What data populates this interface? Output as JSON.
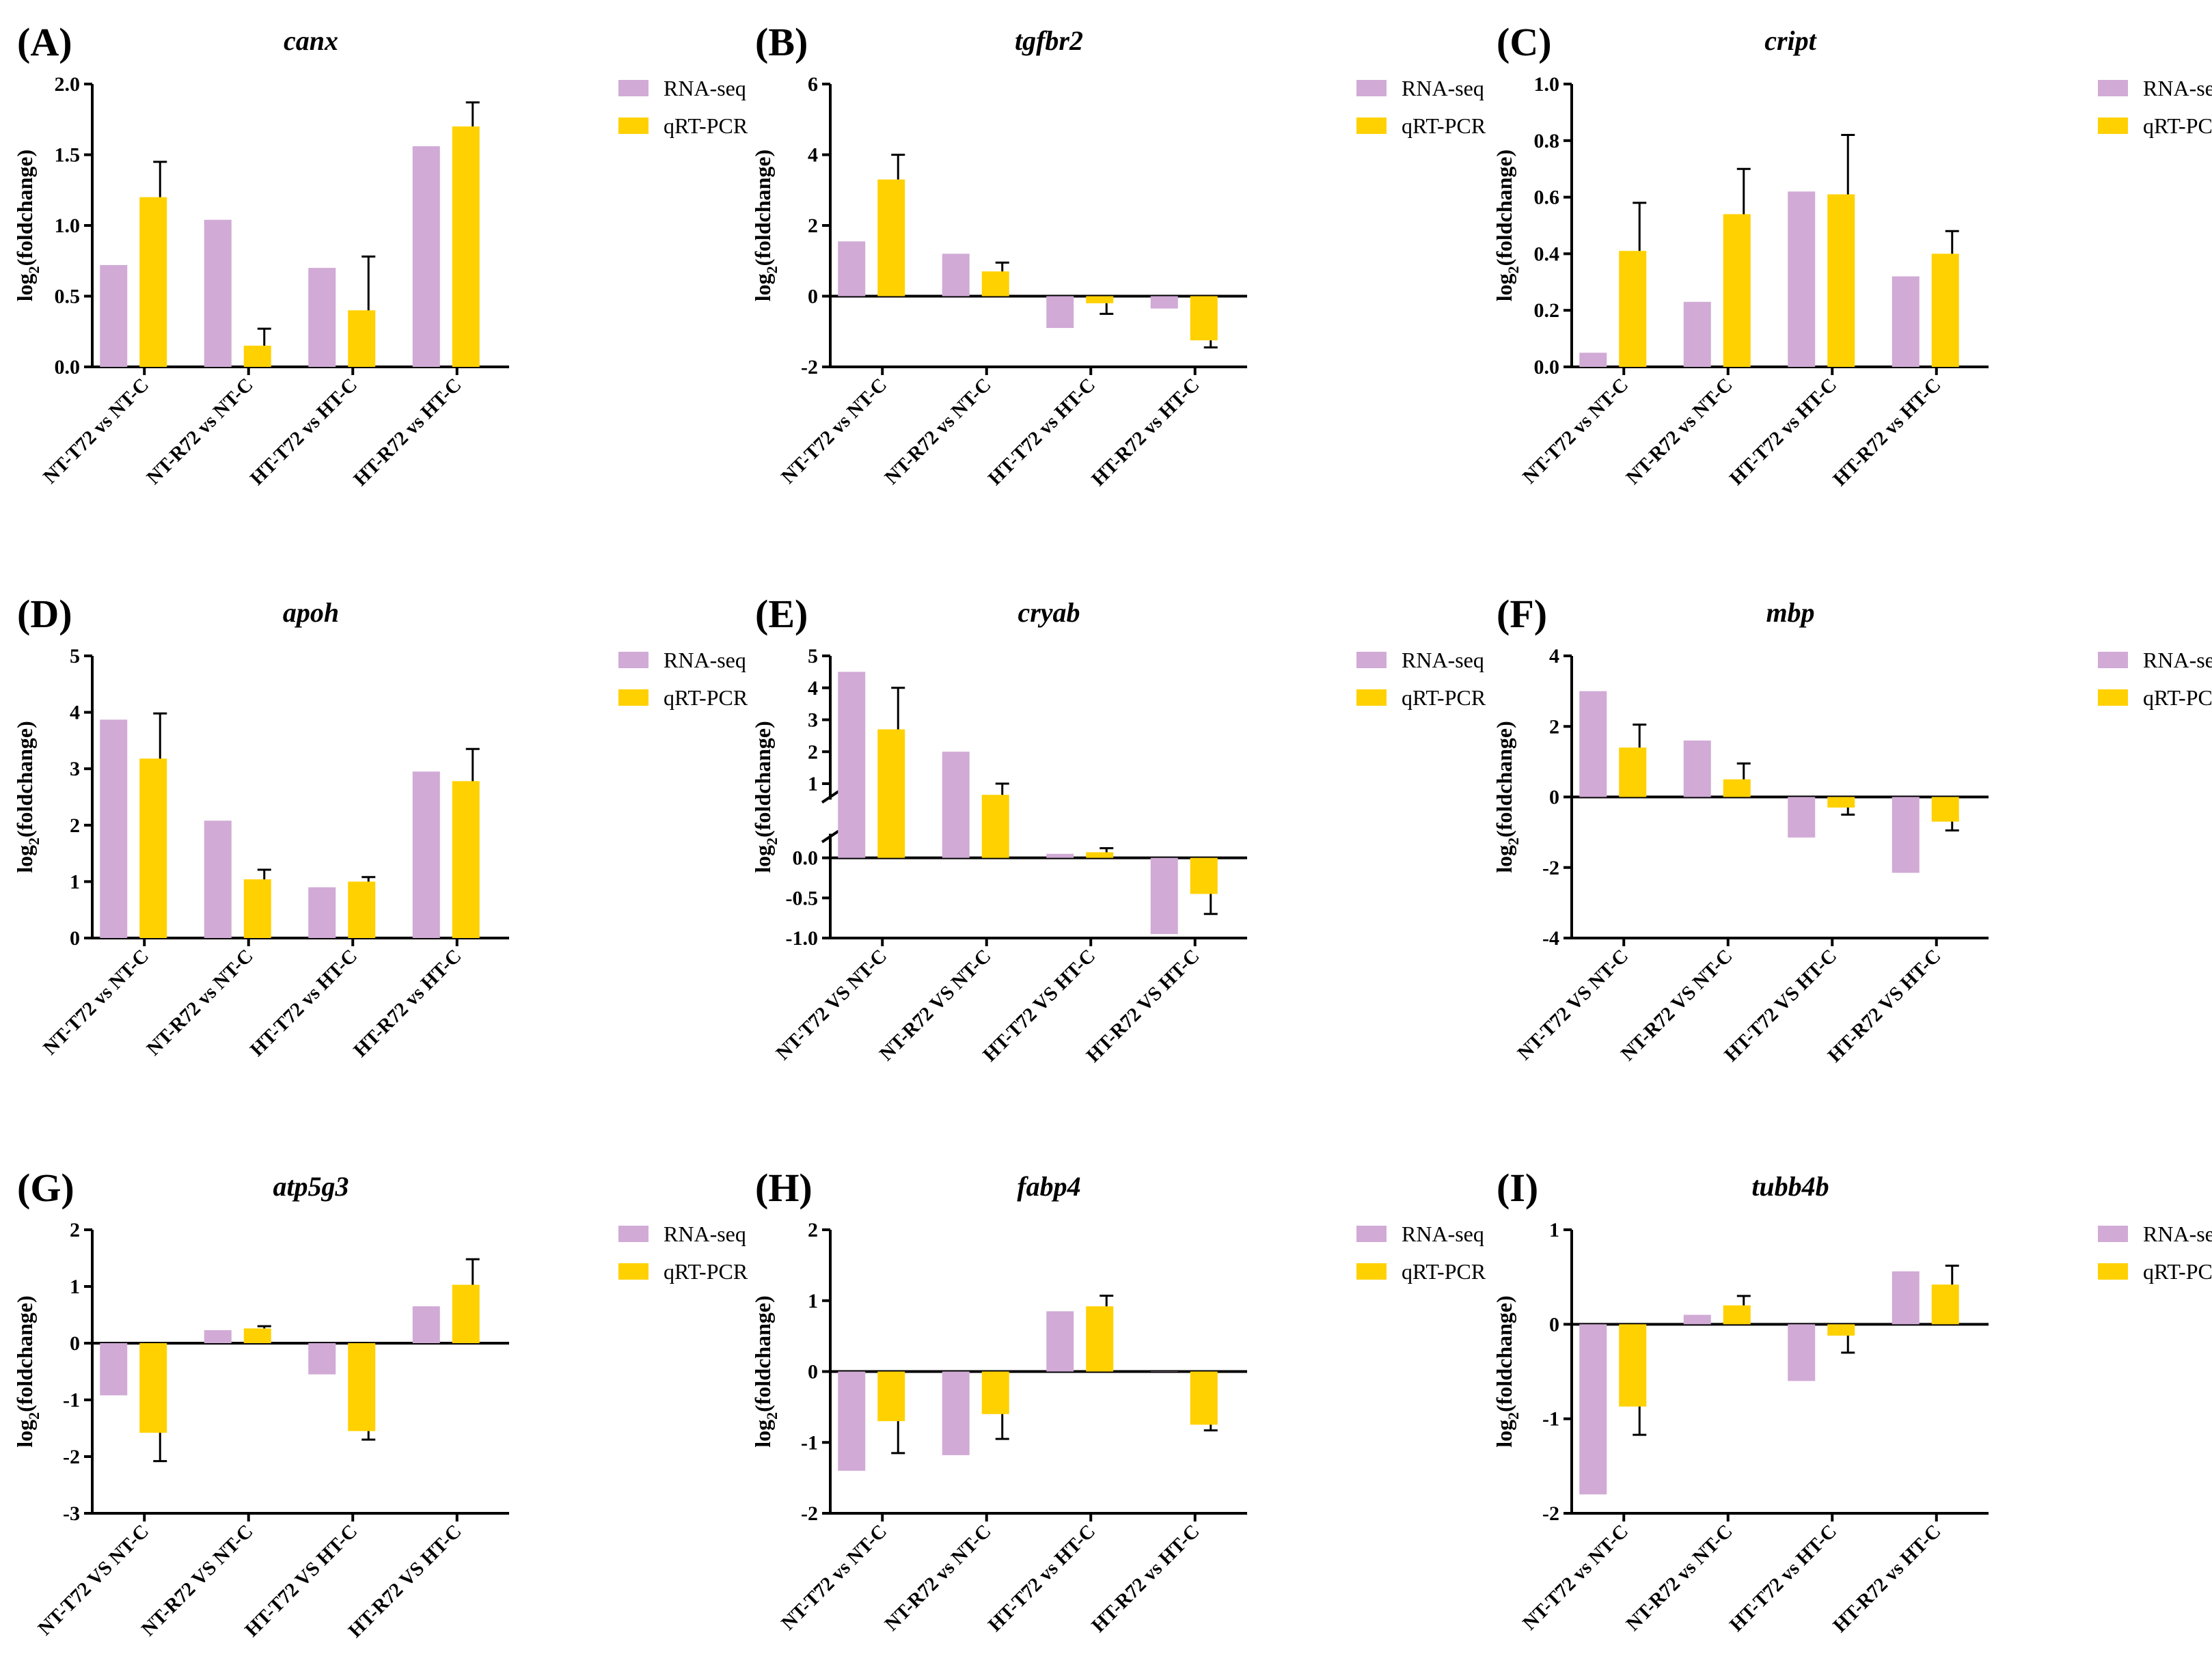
{
  "colors": {
    "rna": "#D1AAD6",
    "qrt": "#FFD100",
    "axis": "#000000"
  },
  "chart_data": [
    {
      "type": "bar",
      "panel": "(A)",
      "title": "canx",
      "ylabel": "log2(foldchange)",
      "ylim": [
        0,
        2.0
      ],
      "yticks": [
        0,
        0.5,
        1,
        1.5,
        2
      ],
      "ytick_labels": [
        "0.0",
        "0.5",
        "1.0",
        "1.5",
        "2.0"
      ],
      "categories": [
        "NT-T72 vs NT-C",
        "NT-R72 vs NT-C",
        "HT-T72 vs HT-C",
        "HT-R72 vs HT-C"
      ],
      "series": [
        {
          "name": "RNA-seq",
          "values": [
            0.72,
            1.04,
            0.7,
            1.56
          ]
        },
        {
          "name": "qRT-PCR",
          "values": [
            1.2,
            0.15,
            0.4,
            1.7
          ],
          "errors": [
            0.25,
            0.12,
            0.38,
            0.17
          ]
        }
      ]
    },
    {
      "type": "bar",
      "panel": "(B)",
      "title": "tgfbr2",
      "ylabel": "log2(foldchange)",
      "ylim": [
        -2,
        6
      ],
      "yticks": [
        -2,
        0,
        2,
        4,
        6
      ],
      "ytick_labels": [
        "-2",
        "0",
        "2",
        "4",
        "6"
      ],
      "categories": [
        "NT-T72 vs NT-C",
        "NT-R72 vs NT-C",
        "HT-T72 vs HT-C",
        "HT-R72 vs HT-C"
      ],
      "series": [
        {
          "name": "RNA-seq",
          "values": [
            1.55,
            1.2,
            -0.9,
            -0.35
          ]
        },
        {
          "name": "qRT-PCR",
          "values": [
            3.3,
            0.7,
            -0.2,
            -1.25
          ],
          "errors": [
            0.7,
            0.25,
            0.3,
            0.2
          ]
        }
      ]
    },
    {
      "type": "bar",
      "panel": "(C)",
      "title": "cript",
      "ylabel": "log2(foldchange)",
      "ylim": [
        0,
        1.0
      ],
      "yticks": [
        0,
        0.2,
        0.4,
        0.6,
        0.8,
        1.0
      ],
      "ytick_labels": [
        "0.0",
        "0.2",
        "0.4",
        "0.6",
        "0.8",
        "1.0"
      ],
      "categories": [
        "NT-T72 vs NT-C",
        "NT-R72 vs NT-C",
        "HT-T72 vs HT-C",
        "HT-R72 vs HT-C"
      ],
      "series": [
        {
          "name": "RNA-seq",
          "values": [
            0.05,
            0.23,
            0.62,
            0.32
          ]
        },
        {
          "name": "qRT-PCR",
          "values": [
            0.41,
            0.54,
            0.61,
            0.4
          ],
          "errors": [
            0.17,
            0.16,
            0.21,
            0.08
          ]
        }
      ]
    },
    {
      "type": "bar",
      "panel": "(D)",
      "title": "apoh",
      "ylabel": "log2(foldchange)",
      "ylim": [
        0,
        5
      ],
      "yticks": [
        0,
        1,
        2,
        3,
        4,
        5
      ],
      "ytick_labels": [
        "0",
        "1",
        "2",
        "3",
        "4",
        "5"
      ],
      "categories": [
        "NT-T72 vs NT-C",
        "NT-R72 vs NT-C",
        "HT-T72 vs HT-C",
        "HT-R72 vs HT-C"
      ],
      "series": [
        {
          "name": "RNA-seq",
          "values": [
            3.87,
            2.08,
            0.9,
            2.95
          ]
        },
        {
          "name": "qRT-PCR",
          "values": [
            3.18,
            1.04,
            1.0,
            2.78
          ],
          "errors": [
            0.8,
            0.17,
            0.08,
            0.57
          ]
        }
      ]
    },
    {
      "type": "bar",
      "panel": "(E)",
      "title": "cryab",
      "ylabel": "log2(foldchange)",
      "ylim": [
        -1.0,
        5
      ],
      "broken_axis": {
        "lower": [
          -1.0,
          0.3
        ],
        "upper": [
          0,
          5
        ]
      },
      "yticks": [
        -1.0,
        -0.5,
        0.0,
        1,
        2,
        3,
        4,
        5
      ],
      "ytick_labels": [
        "-1.0",
        "-0.5",
        "0.0",
        "1",
        "2",
        "3",
        "4",
        "5"
      ],
      "categories": [
        "NT-T72 VS NT-C",
        "NT-R72 VS NT-C",
        "HT-T72 VS HT-C",
        "HT-R72 VS HT-C"
      ],
      "series": [
        {
          "name": "RNA-seq",
          "values": [
            4.5,
            2.0,
            0.05,
            -0.95
          ]
        },
        {
          "name": "qRT-PCR",
          "values": [
            2.7,
            0.65,
            0.07,
            -0.45
          ],
          "errors": [
            1.3,
            0.35,
            0.05,
            0.25
          ]
        }
      ]
    },
    {
      "type": "bar",
      "panel": "(F)",
      "title": "mbp",
      "ylabel": "log2(foldchange)",
      "ylim": [
        -4,
        4
      ],
      "yticks": [
        -4,
        -2,
        0,
        2,
        4
      ],
      "ytick_labels": [
        "-4",
        "-2",
        "0",
        "2",
        "4"
      ],
      "categories": [
        "NT-T72 VS NT-C",
        "NT-R72 VS NT-C",
        "HT-T72 VS HT-C",
        "HT-R72 VS HT-C"
      ],
      "series": [
        {
          "name": "RNA-seq",
          "values": [
            3.0,
            1.6,
            -1.15,
            -2.15
          ]
        },
        {
          "name": "qRT-PCR",
          "values": [
            1.4,
            0.5,
            -0.3,
            -0.7
          ],
          "errors": [
            0.65,
            0.45,
            0.2,
            0.25
          ]
        }
      ]
    },
    {
      "type": "bar",
      "panel": "(G)",
      "title": "atp5g3",
      "ylabel": "log2(foldchange)",
      "ylim": [
        -3,
        2
      ],
      "yticks": [
        -3,
        -2,
        -1,
        0,
        1,
        2
      ],
      "ytick_labels": [
        "-3",
        "-2",
        "-1",
        "0",
        "1",
        "2"
      ],
      "categories": [
        "NT-T72 VS NT-C",
        "NT-R72 VS NT-C",
        "HT-T72 VS HT-C",
        "HT-R72 VS HT-C"
      ],
      "series": [
        {
          "name": "RNA-seq",
          "values": [
            -0.92,
            0.23,
            -0.55,
            0.65
          ]
        },
        {
          "name": "qRT-PCR",
          "values": [
            -1.58,
            0.26,
            -1.55,
            1.03
          ],
          "errors": [
            0.5,
            0.04,
            0.15,
            0.45
          ]
        }
      ]
    },
    {
      "type": "bar",
      "panel": "(H)",
      "title": "fabp4",
      "ylabel": "log2(foldchange)",
      "ylim": [
        -2,
        2
      ],
      "yticks": [
        -2,
        -1,
        0,
        1,
        2
      ],
      "ytick_labels": [
        "-2",
        "-1",
        "0",
        "1",
        "2"
      ],
      "categories": [
        "NT-T72 vs NT-C",
        "NT-R72 vs NT-C",
        "HT-T72 vs HT-C",
        "HT-R72 vs HT-C"
      ],
      "series": [
        {
          "name": "RNA-seq",
          "values": [
            -1.4,
            -1.18,
            0.85,
            0.0
          ]
        },
        {
          "name": "qRT-PCR",
          "values": [
            -0.7,
            -0.6,
            0.92,
            -0.75
          ],
          "errors": [
            0.45,
            0.35,
            0.15,
            0.08
          ]
        }
      ]
    },
    {
      "type": "bar",
      "panel": "(I)",
      "title": "tubb4b",
      "ylabel": "log2(foldchange)",
      "ylim": [
        -2,
        1
      ],
      "yticks": [
        -2,
        -1,
        0,
        1
      ],
      "ytick_labels": [
        "-2",
        "-1",
        "0",
        "1"
      ],
      "categories": [
        "NT-T72 vs NT-C",
        "NT-R72 vs NT-C",
        "HT-T72 vs HT-C",
        "HT-R72 vs HT-C"
      ],
      "series": [
        {
          "name": "RNA-seq",
          "values": [
            -1.8,
            0.1,
            -0.6,
            0.56
          ]
        },
        {
          "name": "qRT-PCR",
          "values": [
            -0.87,
            0.2,
            -0.12,
            0.42
          ],
          "errors": [
            0.3,
            0.1,
            0.18,
            0.2
          ]
        }
      ]
    }
  ]
}
